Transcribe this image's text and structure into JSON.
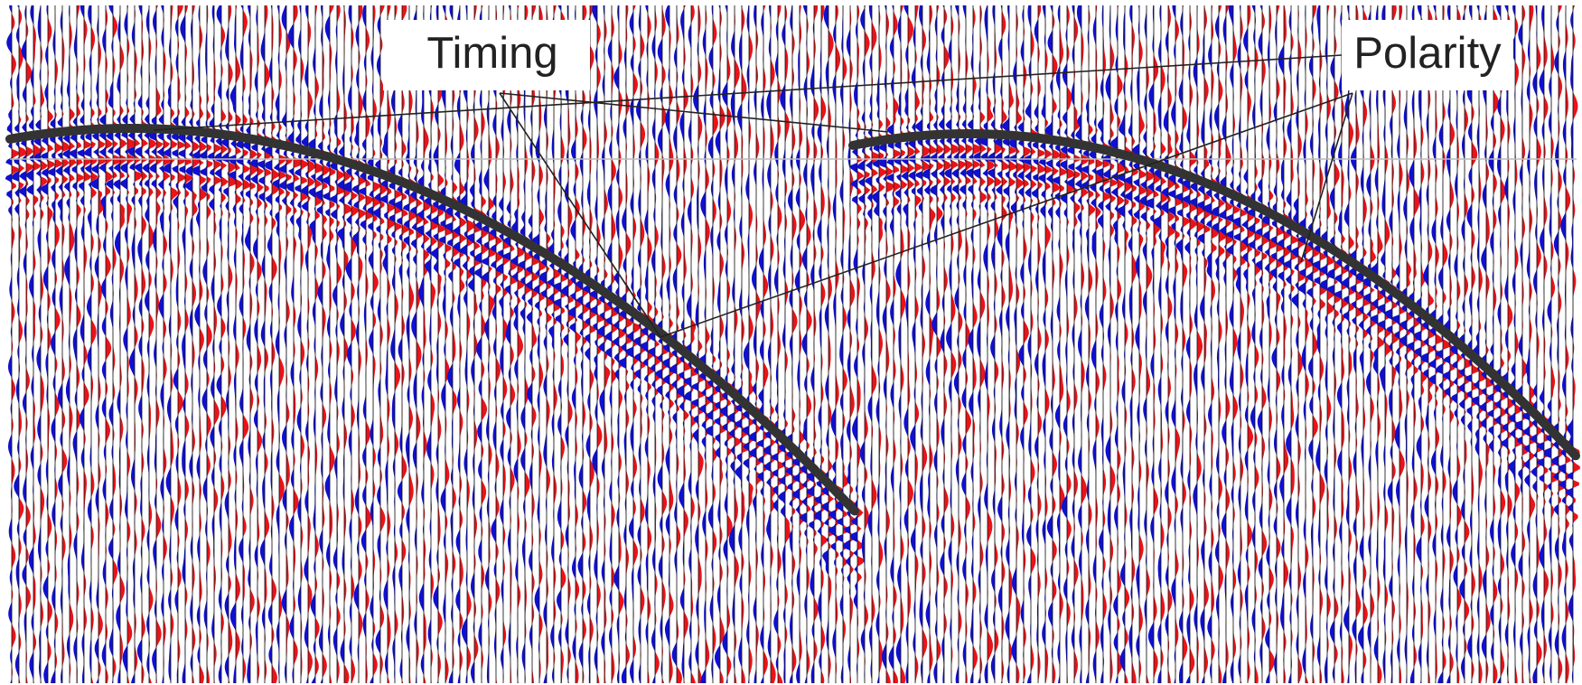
{
  "annotations": {
    "timing": "Timing",
    "polarity": "Polarity"
  }
}
